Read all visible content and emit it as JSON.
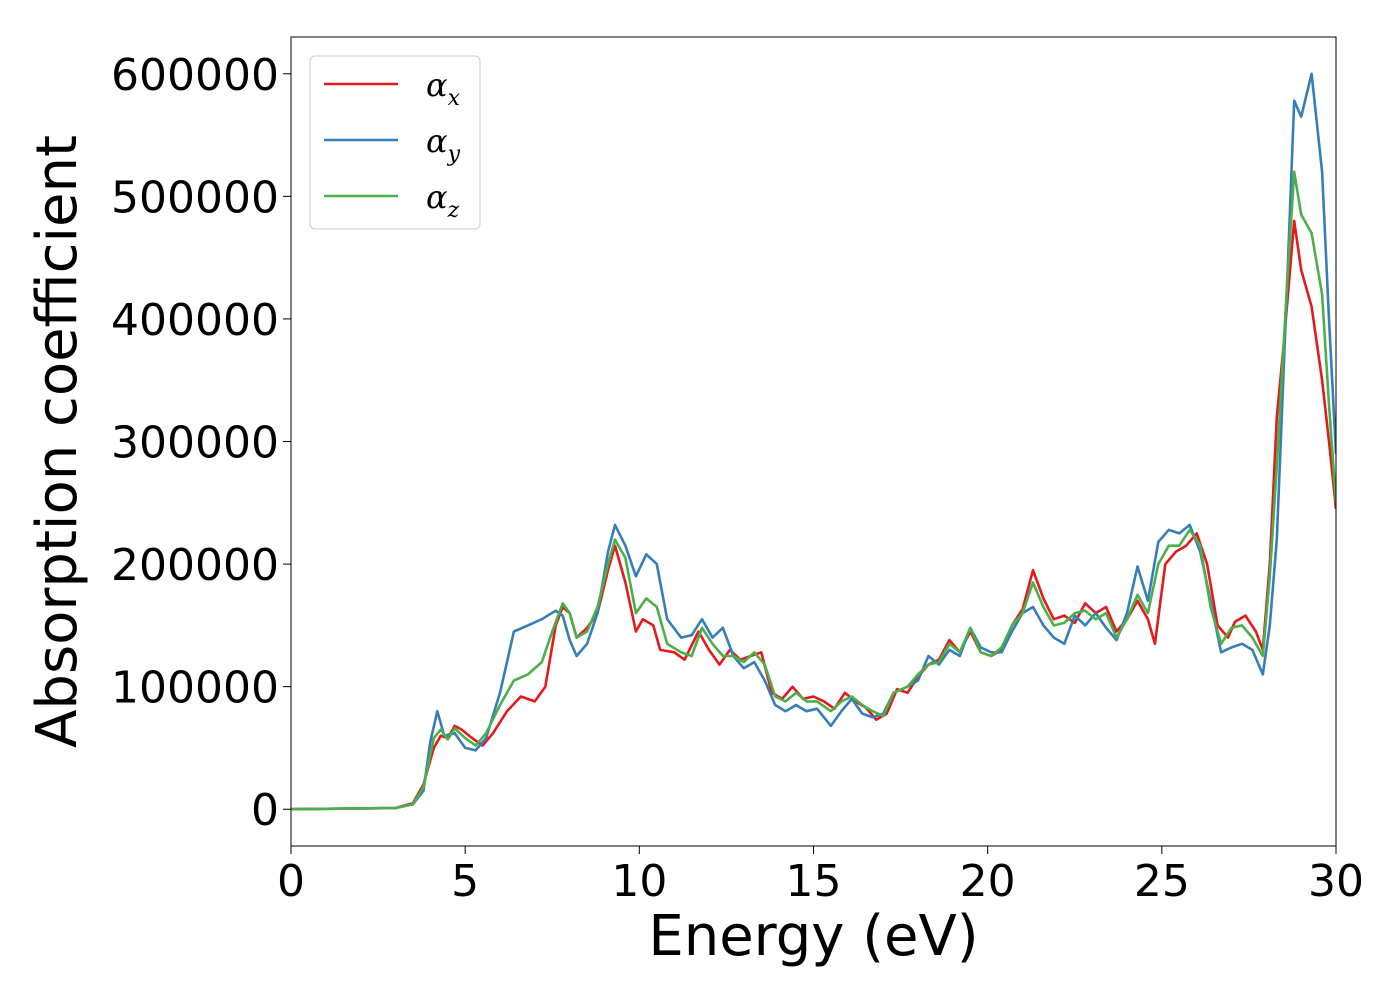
{
  "chart_data": {
    "type": "line",
    "title": "",
    "xlabel": "Energy (eV)",
    "ylabel": "Absorption coefficient",
    "xlim": [
      0,
      30
    ],
    "ylim": [
      -30000,
      630000
    ],
    "xticks": [
      0,
      5,
      10,
      15,
      20,
      25,
      30
    ],
    "xtick_labels": [
      "0",
      "5",
      "10",
      "15",
      "20",
      "25",
      "30"
    ],
    "yticks": [
      0,
      100000,
      200000,
      300000,
      400000,
      500000,
      600000
    ],
    "ytick_labels": [
      "0",
      "100000",
      "200000",
      "300000",
      "400000",
      "500000",
      "600000"
    ],
    "grid": false,
    "legend_position": "top-left",
    "series": [
      {
        "name": "α_x",
        "legend_symbol": "α",
        "legend_subscript": "x",
        "color": "#e41a1c",
        "points": [
          [
            0,
            0
          ],
          [
            3,
            1000
          ],
          [
            3.5,
            5000
          ],
          [
            3.8,
            20000
          ],
          [
            4.1,
            50000
          ],
          [
            4.3,
            60000
          ],
          [
            4.5,
            58000
          ],
          [
            4.7,
            68000
          ],
          [
            4.9,
            65000
          ],
          [
            5.2,
            58000
          ],
          [
            5.5,
            52000
          ],
          [
            5.8,
            62000
          ],
          [
            6.2,
            80000
          ],
          [
            6.6,
            92000
          ],
          [
            7.0,
            88000
          ],
          [
            7.3,
            100000
          ],
          [
            7.6,
            150000
          ],
          [
            7.8,
            165000
          ],
          [
            8.0,
            160000
          ],
          [
            8.2,
            140000
          ],
          [
            8.5,
            148000
          ],
          [
            8.8,
            160000
          ],
          [
            9.1,
            195000
          ],
          [
            9.3,
            215000
          ],
          [
            9.6,
            185000
          ],
          [
            9.9,
            145000
          ],
          [
            10.1,
            155000
          ],
          [
            10.4,
            150000
          ],
          [
            10.6,
            130000
          ],
          [
            11.0,
            128000
          ],
          [
            11.3,
            122000
          ],
          [
            11.7,
            145000
          ],
          [
            12.0,
            130000
          ],
          [
            12.3,
            118000
          ],
          [
            12.6,
            130000
          ],
          [
            12.9,
            122000
          ],
          [
            13.2,
            125000
          ],
          [
            13.5,
            128000
          ],
          [
            13.8,
            95000
          ],
          [
            14.1,
            90000
          ],
          [
            14.4,
            100000
          ],
          [
            14.7,
            90000
          ],
          [
            15.0,
            92000
          ],
          [
            15.3,
            88000
          ],
          [
            15.6,
            82000
          ],
          [
            15.9,
            95000
          ],
          [
            16.2,
            88000
          ],
          [
            16.5,
            83000
          ],
          [
            16.8,
            73000
          ],
          [
            17.1,
            78000
          ],
          [
            17.4,
            98000
          ],
          [
            17.7,
            95000
          ],
          [
            18.0,
            108000
          ],
          [
            18.3,
            118000
          ],
          [
            18.6,
            122000
          ],
          [
            18.9,
            138000
          ],
          [
            19.2,
            128000
          ],
          [
            19.5,
            145000
          ],
          [
            19.8,
            128000
          ],
          [
            20.1,
            125000
          ],
          [
            20.4,
            130000
          ],
          [
            20.7,
            150000
          ],
          [
            21.0,
            163000
          ],
          [
            21.3,
            195000
          ],
          [
            21.6,
            172000
          ],
          [
            21.9,
            155000
          ],
          [
            22.2,
            158000
          ],
          [
            22.5,
            152000
          ],
          [
            22.8,
            168000
          ],
          [
            23.1,
            160000
          ],
          [
            23.4,
            165000
          ],
          [
            23.7,
            145000
          ],
          [
            24.0,
            155000
          ],
          [
            24.3,
            170000
          ],
          [
            24.6,
            155000
          ],
          [
            24.8,
            135000
          ],
          [
            25.1,
            200000
          ],
          [
            25.4,
            210000
          ],
          [
            25.7,
            215000
          ],
          [
            26.0,
            225000
          ],
          [
            26.3,
            200000
          ],
          [
            26.6,
            150000
          ],
          [
            26.9,
            140000
          ],
          [
            27.1,
            153000
          ],
          [
            27.4,
            158000
          ],
          [
            27.7,
            145000
          ],
          [
            27.9,
            130000
          ],
          [
            28.1,
            200000
          ],
          [
            28.3,
            320000
          ],
          [
            28.5,
            380000
          ],
          [
            28.8,
            480000
          ],
          [
            29.0,
            440000
          ],
          [
            29.3,
            410000
          ],
          [
            29.6,
            350000
          ],
          [
            29.8,
            300000
          ],
          [
            30.0,
            245000
          ]
        ]
      },
      {
        "name": "α_y",
        "legend_symbol": "α",
        "legend_subscript": "y",
        "color": "#377eb8",
        "points": [
          [
            0,
            0
          ],
          [
            3,
            1000
          ],
          [
            3.5,
            4000
          ],
          [
            3.8,
            15000
          ],
          [
            4.0,
            55000
          ],
          [
            4.2,
            80000
          ],
          [
            4.4,
            60000
          ],
          [
            4.7,
            62000
          ],
          [
            5.0,
            50000
          ],
          [
            5.3,
            48000
          ],
          [
            5.6,
            58000
          ],
          [
            6.0,
            95000
          ],
          [
            6.4,
            145000
          ],
          [
            6.8,
            150000
          ],
          [
            7.2,
            155000
          ],
          [
            7.6,
            162000
          ],
          [
            7.8,
            158000
          ],
          [
            8.0,
            138000
          ],
          [
            8.2,
            125000
          ],
          [
            8.5,
            135000
          ],
          [
            8.8,
            160000
          ],
          [
            9.1,
            210000
          ],
          [
            9.3,
            232000
          ],
          [
            9.6,
            215000
          ],
          [
            9.9,
            190000
          ],
          [
            10.2,
            208000
          ],
          [
            10.5,
            200000
          ],
          [
            10.8,
            155000
          ],
          [
            11.2,
            140000
          ],
          [
            11.5,
            142000
          ],
          [
            11.8,
            155000
          ],
          [
            12.1,
            140000
          ],
          [
            12.4,
            148000
          ],
          [
            12.7,
            125000
          ],
          [
            13.0,
            115000
          ],
          [
            13.3,
            120000
          ],
          [
            13.6,
            105000
          ],
          [
            13.9,
            85000
          ],
          [
            14.2,
            80000
          ],
          [
            14.5,
            85000
          ],
          [
            14.8,
            80000
          ],
          [
            15.1,
            82000
          ],
          [
            15.5,
            68000
          ],
          [
            15.8,
            80000
          ],
          [
            16.1,
            90000
          ],
          [
            16.4,
            78000
          ],
          [
            16.7,
            75000
          ],
          [
            17.0,
            78000
          ],
          [
            17.3,
            95000
          ],
          [
            17.7,
            100000
          ],
          [
            18.0,
            105000
          ],
          [
            18.3,
            125000
          ],
          [
            18.6,
            118000
          ],
          [
            18.9,
            130000
          ],
          [
            19.2,
            125000
          ],
          [
            19.5,
            148000
          ],
          [
            19.8,
            132000
          ],
          [
            20.1,
            128000
          ],
          [
            20.4,
            128000
          ],
          [
            20.7,
            145000
          ],
          [
            21.0,
            160000
          ],
          [
            21.3,
            165000
          ],
          [
            21.6,
            150000
          ],
          [
            21.9,
            140000
          ],
          [
            22.2,
            135000
          ],
          [
            22.5,
            158000
          ],
          [
            22.8,
            150000
          ],
          [
            23.1,
            160000
          ],
          [
            23.4,
            148000
          ],
          [
            23.7,
            138000
          ],
          [
            24.0,
            160000
          ],
          [
            24.3,
            198000
          ],
          [
            24.6,
            170000
          ],
          [
            24.9,
            218000
          ],
          [
            25.2,
            228000
          ],
          [
            25.5,
            225000
          ],
          [
            25.8,
            232000
          ],
          [
            26.1,
            210000
          ],
          [
            26.4,
            170000
          ],
          [
            26.7,
            128000
          ],
          [
            27.0,
            132000
          ],
          [
            27.3,
            135000
          ],
          [
            27.6,
            130000
          ],
          [
            27.9,
            110000
          ],
          [
            28.1,
            150000
          ],
          [
            28.3,
            220000
          ],
          [
            28.6,
            430000
          ],
          [
            28.8,
            578000
          ],
          [
            29.0,
            565000
          ],
          [
            29.3,
            600000
          ],
          [
            29.6,
            520000
          ],
          [
            29.8,
            400000
          ],
          [
            30.0,
            290000
          ]
        ]
      },
      {
        "name": "α_z",
        "legend_symbol": "α",
        "legend_subscript": "z",
        "color": "#4daf4a",
        "points": [
          [
            0,
            0
          ],
          [
            3,
            1000
          ],
          [
            3.5,
            4000
          ],
          [
            3.8,
            18000
          ],
          [
            4.1,
            58000
          ],
          [
            4.3,
            65000
          ],
          [
            4.5,
            57000
          ],
          [
            4.7,
            66000
          ],
          [
            5.0,
            58000
          ],
          [
            5.3,
            52000
          ],
          [
            5.6,
            62000
          ],
          [
            6.0,
            85000
          ],
          [
            6.4,
            105000
          ],
          [
            6.8,
            110000
          ],
          [
            7.2,
            120000
          ],
          [
            7.5,
            145000
          ],
          [
            7.8,
            168000
          ],
          [
            8.0,
            160000
          ],
          [
            8.2,
            140000
          ],
          [
            8.5,
            145000
          ],
          [
            8.8,
            165000
          ],
          [
            9.1,
            200000
          ],
          [
            9.3,
            220000
          ],
          [
            9.6,
            205000
          ],
          [
            9.9,
            160000
          ],
          [
            10.2,
            172000
          ],
          [
            10.5,
            165000
          ],
          [
            10.8,
            135000
          ],
          [
            11.2,
            128000
          ],
          [
            11.5,
            125000
          ],
          [
            11.8,
            148000
          ],
          [
            12.1,
            135000
          ],
          [
            12.4,
            125000
          ],
          [
            12.7,
            125000
          ],
          [
            13.0,
            120000
          ],
          [
            13.3,
            128000
          ],
          [
            13.6,
            118000
          ],
          [
            13.9,
            92000
          ],
          [
            14.2,
            88000
          ],
          [
            14.5,
            95000
          ],
          [
            14.8,
            88000
          ],
          [
            15.1,
            88000
          ],
          [
            15.5,
            80000
          ],
          [
            15.8,
            88000
          ],
          [
            16.1,
            92000
          ],
          [
            16.4,
            85000
          ],
          [
            16.7,
            80000
          ],
          [
            17.0,
            76000
          ],
          [
            17.3,
            95000
          ],
          [
            17.7,
            100000
          ],
          [
            18.0,
            110000
          ],
          [
            18.3,
            118000
          ],
          [
            18.6,
            120000
          ],
          [
            18.9,
            135000
          ],
          [
            19.2,
            128000
          ],
          [
            19.5,
            148000
          ],
          [
            19.8,
            128000
          ],
          [
            20.1,
            125000
          ],
          [
            20.4,
            132000
          ],
          [
            20.7,
            150000
          ],
          [
            21.0,
            160000
          ],
          [
            21.3,
            185000
          ],
          [
            21.6,
            165000
          ],
          [
            21.9,
            150000
          ],
          [
            22.2,
            152000
          ],
          [
            22.5,
            160000
          ],
          [
            22.8,
            162000
          ],
          [
            23.1,
            155000
          ],
          [
            23.4,
            160000
          ],
          [
            23.7,
            140000
          ],
          [
            24.0,
            155000
          ],
          [
            24.3,
            175000
          ],
          [
            24.6,
            160000
          ],
          [
            24.9,
            200000
          ],
          [
            25.2,
            215000
          ],
          [
            25.5,
            215000
          ],
          [
            25.8,
            228000
          ],
          [
            26.1,
            215000
          ],
          [
            26.4,
            165000
          ],
          [
            26.7,
            135000
          ],
          [
            27.0,
            148000
          ],
          [
            27.3,
            150000
          ],
          [
            27.6,
            140000
          ],
          [
            27.9,
            125000
          ],
          [
            28.1,
            190000
          ],
          [
            28.3,
            280000
          ],
          [
            28.6,
            430000
          ],
          [
            28.8,
            520000
          ],
          [
            29.0,
            485000
          ],
          [
            29.3,
            470000
          ],
          [
            29.6,
            420000
          ],
          [
            29.8,
            330000
          ],
          [
            30.0,
            250000
          ]
        ]
      }
    ]
  }
}
